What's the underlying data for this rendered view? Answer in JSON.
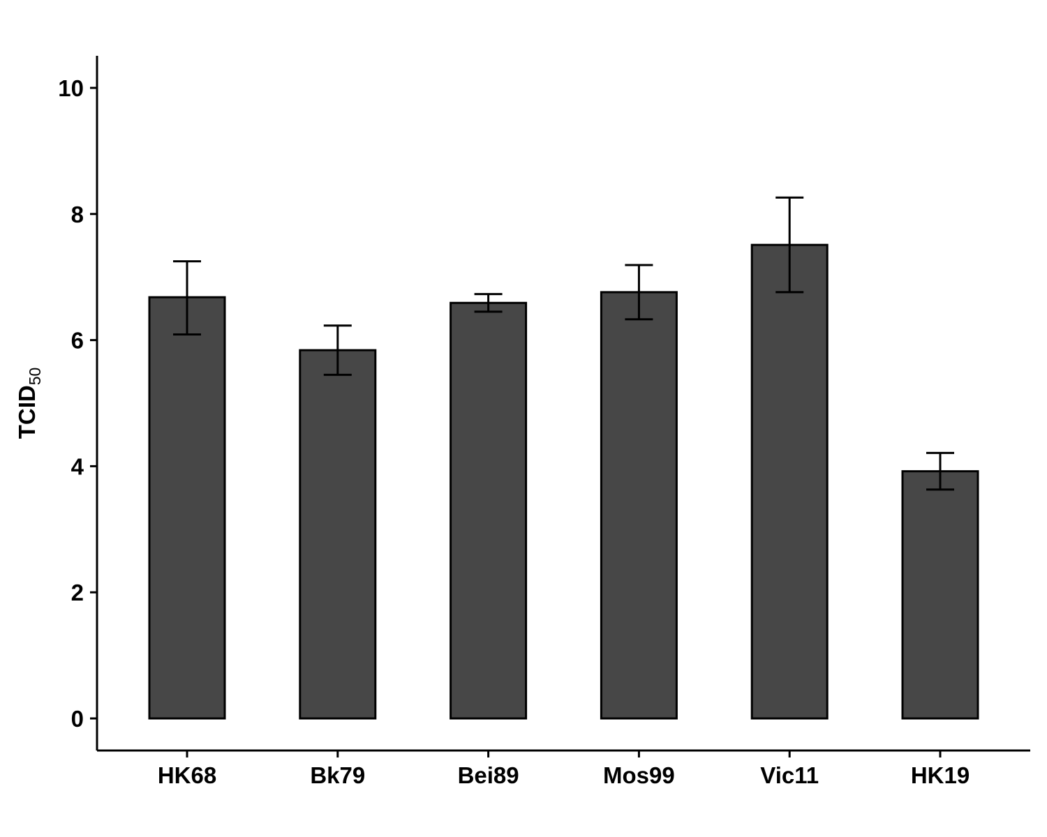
{
  "chart_data": {
    "type": "bar",
    "categories": [
      "HK68",
      "Bk79",
      "Bei89",
      "Mos99",
      "Vic11",
      "HK19"
    ],
    "values": [
      6.68,
      5.84,
      6.59,
      6.76,
      7.51,
      3.92
    ],
    "error_low": [
      6.09,
      5.45,
      6.45,
      6.33,
      6.76,
      3.63
    ],
    "error_high": [
      7.25,
      6.23,
      6.73,
      7.19,
      8.26,
      4.21
    ],
    "ylabel": "TCID",
    "ylabel_subscript": "50",
    "ylim": [
      -0.5,
      10.5
    ],
    "yticks": [
      "0",
      "2",
      "4",
      "6",
      "8",
      "10"
    ],
    "grid": false,
    "bar_color": "#474747",
    "outline_color": "#000000"
  }
}
